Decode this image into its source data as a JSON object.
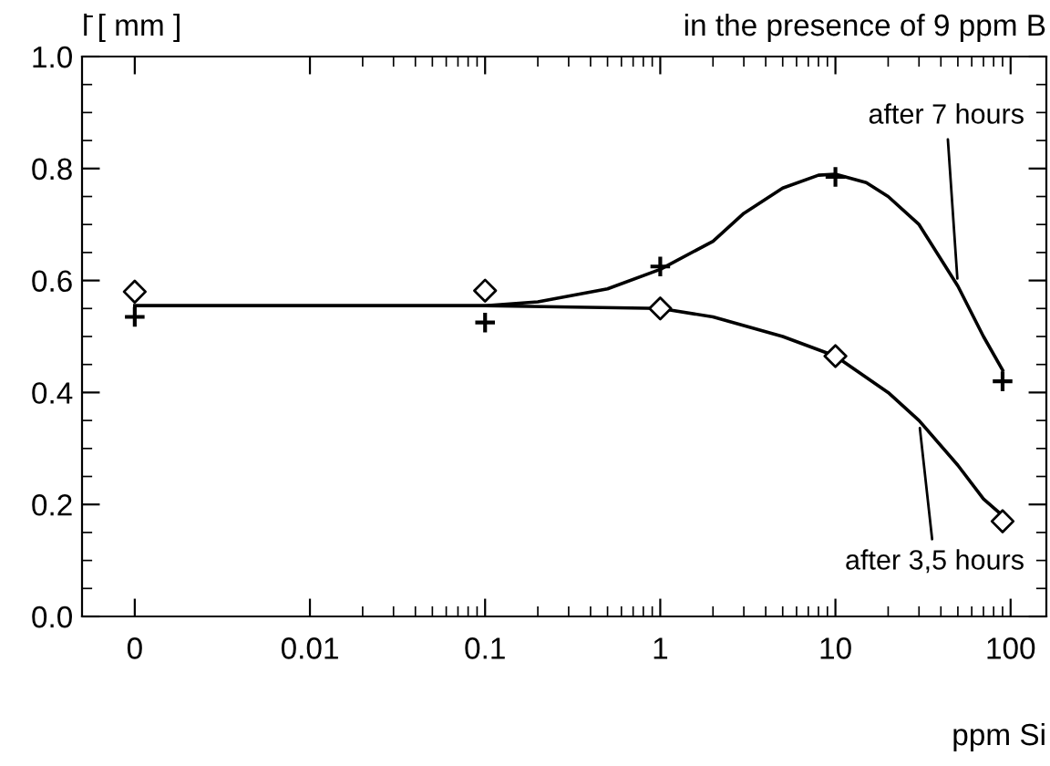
{
  "chart_data": {
    "type": "line",
    "title": "in the presence of 9 ppm B",
    "ylabel": "l̄ [ mm ]",
    "xlabel": "ppm Si",
    "log": "x",
    "xlim": [
      0.0005,
      160
    ],
    "xticks": [
      {
        "value": 0.001,
        "label": "0"
      },
      0.01,
      0.1,
      1,
      10,
      100
    ],
    "ylim": [
      0.0,
      1.0
    ],
    "yticks": [
      {
        "value": 0.0,
        "label": "0.0"
      },
      {
        "value": 0.2,
        "label": "0.2"
      },
      {
        "value": 0.4,
        "label": "0.4"
      },
      {
        "value": 0.6,
        "label": "0.6"
      },
      {
        "value": 0.8,
        "label": "0.8"
      },
      {
        "value": 1.0,
        "label": "1.0"
      }
    ],
    "grid": false,
    "legend": "right",
    "series": [
      {
        "name": "after 7 hours",
        "color": "#000000",
        "x": [
          0.001,
          0.1,
          0.2,
          0.5,
          1,
          2,
          3,
          5,
          8,
          10,
          15,
          20,
          30,
          50,
          70,
          90
        ],
        "values": [
          0.555,
          0.555,
          0.562,
          0.585,
          0.62,
          0.67,
          0.72,
          0.765,
          0.788,
          0.79,
          0.775,
          0.75,
          0.7,
          0.59,
          0.5,
          0.44
        ],
        "marker": "none",
        "line_style": "solid"
      },
      {
        "name": "after 3,5 hours",
        "color": "#000000",
        "x": [
          0.001,
          0.1,
          1,
          2,
          5,
          10,
          20,
          30,
          50,
          70,
          90
        ],
        "values": [
          0.555,
          0.555,
          0.55,
          0.535,
          0.5,
          0.465,
          0.4,
          0.35,
          0.27,
          0.21,
          0.18
        ],
        "marker": "none",
        "line_style": "solid"
      },
      {
        "type": "scatter",
        "color": "#000000",
        "x": [
          0.001,
          0.1,
          1,
          10,
          90
        ],
        "values": [
          0.535,
          0.525,
          0.625,
          0.785,
          0.42
        ],
        "marker": "cross"
      },
      {
        "type": "scatter",
        "color": "#000000",
        "x": [
          0.001,
          0.1,
          1,
          10,
          90
        ],
        "values": [
          0.58,
          0.582,
          0.55,
          0.465,
          0.17
        ],
        "marker": "diamond"
      }
    ]
  }
}
